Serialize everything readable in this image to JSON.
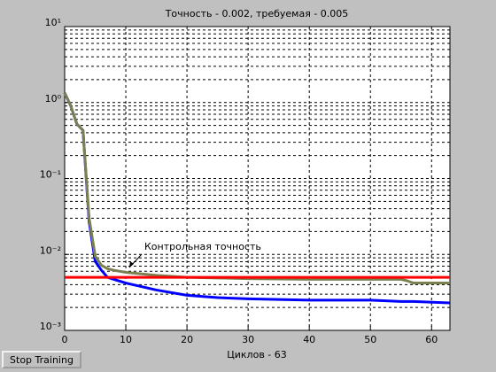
{
  "chart_data": {
    "type": "line",
    "title": "Точность - 0.002, требуемая - 0.005",
    "xlabel": "Циклов - 63",
    "annotation": "Контрольная точность",
    "yscale": "log",
    "grid": true,
    "xlim": [
      0,
      63
    ],
    "xticks": [
      0,
      10,
      20,
      30,
      40,
      50,
      60
    ],
    "ylim": [
      0.001,
      10
    ],
    "yticks": [
      {
        "value": 0.001,
        "label": "10⁻³"
      },
      {
        "value": 0.01,
        "label": "10⁻²"
      },
      {
        "value": 0.1,
        "label": "10⁻¹"
      },
      {
        "value": 1,
        "label": "10⁰"
      },
      {
        "value": 10,
        "label": "10¹"
      }
    ],
    "yminorticks": [
      0.002,
      0.003,
      0.004,
      0.005,
      0.006,
      0.007,
      0.008,
      0.009,
      0.02,
      0.03,
      0.04,
      0.05,
      0.06,
      0.07,
      0.08,
      0.09,
      0.2,
      0.3,
      0.4,
      0.5,
      0.6,
      0.7,
      0.8,
      0.9,
      2,
      3,
      4,
      5,
      6,
      7,
      8,
      9
    ],
    "x": [
      0,
      1,
      2,
      3,
      4,
      5,
      6,
      7,
      8,
      10,
      15,
      20,
      25,
      30,
      40,
      50,
      55,
      56,
      57,
      63
    ],
    "series": [
      {
        "color": "#0000ff",
        "values": [
          1.34,
          0.9,
          0.52,
          0.43,
          0.027,
          0.0081,
          0.0062,
          0.005,
          0.0047,
          0.0042,
          0.0034,
          0.0029,
          0.0027,
          0.0026,
          0.0025,
          0.0025,
          0.0024,
          0.0024,
          0.0024,
          0.0023
        ]
      },
      {
        "color": "#7b8050",
        "values": [
          1.34,
          0.9,
          0.52,
          0.43,
          0.03,
          0.0095,
          0.0072,
          0.0065,
          0.0062,
          0.0058,
          0.0053,
          0.005,
          0.0049,
          0.0048,
          0.0047,
          0.0047,
          0.0047,
          0.0045,
          0.0042,
          0.0042
        ]
      },
      {
        "color": "#ff0000",
        "values": [
          0.005,
          0.005,
          0.005,
          0.005,
          0.005,
          0.005,
          0.005,
          0.005,
          0.005,
          0.005,
          0.005,
          0.005,
          0.005,
          0.005,
          0.005,
          0.005,
          0.005,
          0.005,
          0.005,
          0.005
        ]
      }
    ]
  },
  "controls": {
    "stop_button": "Stop Training"
  }
}
